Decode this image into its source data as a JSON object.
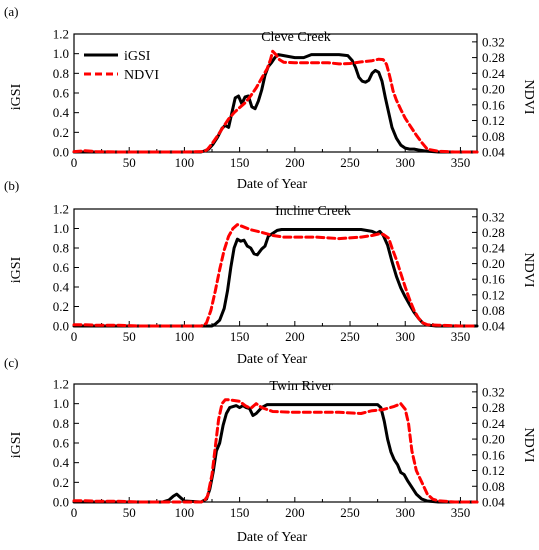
{
  "chart_data": [
    {
      "type": "line",
      "label": "(a)",
      "title": "Cleve Creek",
      "xlabel": "Date of Year",
      "ylabel": "iGSI",
      "y2label": "NDVI",
      "xlim": [
        0,
        365
      ],
      "ylim": [
        0,
        1.2
      ],
      "y2lim": [
        0.04,
        0.34
      ],
      "xticks": [
        0,
        50,
        100,
        150,
        200,
        250,
        300,
        350
      ],
      "yticks": [
        "0.0",
        "0.2",
        "0.4",
        "0.6",
        "0.8",
        "1.0",
        "1.2"
      ],
      "y2ticks": [
        "0.04",
        "0.08",
        "0.12",
        "0.16",
        "0.20",
        "0.24",
        "0.28",
        "0.32"
      ],
      "legend": {
        "position": "top-left",
        "entries": [
          "iGSI",
          "NDVI"
        ]
      },
      "series": [
        {
          "name": "iGSI",
          "axis": "left",
          "color": "#000000",
          "style": "solid",
          "x": [
            0,
            115,
            118,
            122,
            126,
            130,
            134,
            137,
            140,
            143,
            146,
            149,
            152,
            155,
            158,
            161,
            164,
            167,
            170,
            173,
            176,
            179,
            182,
            185,
            190,
            200,
            208,
            215,
            222,
            230,
            240,
            248,
            252,
            255,
            258,
            261,
            264,
            267,
            270,
            273,
            276,
            279,
            282,
            285,
            288,
            292,
            296,
            300,
            304,
            308,
            312,
            318,
            330,
            365
          ],
          "y": [
            0,
            0,
            0.01,
            0.03,
            0.08,
            0.15,
            0.24,
            0.27,
            0.25,
            0.4,
            0.55,
            0.57,
            0.49,
            0.56,
            0.57,
            0.46,
            0.44,
            0.52,
            0.63,
            0.78,
            0.87,
            0.91,
            0.96,
            0.99,
            0.98,
            0.96,
            0.96,
            0.99,
            0.99,
            0.99,
            0.99,
            0.98,
            0.93,
            0.86,
            0.76,
            0.72,
            0.71,
            0.73,
            0.8,
            0.83,
            0.81,
            0.72,
            0.55,
            0.4,
            0.25,
            0.14,
            0.07,
            0.04,
            0.03,
            0.03,
            0.02,
            0.01,
            0,
            0
          ]
        },
        {
          "name": "NDVI",
          "axis": "right",
          "color": "#ff0000",
          "style": "dashed",
          "x": [
            0,
            10,
            20,
            40,
            60,
            80,
            100,
            118,
            121,
            125,
            130,
            135,
            140,
            145,
            150,
            155,
            160,
            165,
            170,
            175,
            178,
            180,
            183,
            186,
            190,
            200,
            215,
            230,
            240,
            250,
            260,
            270,
            276,
            280,
            283,
            285,
            287,
            289,
            292,
            296,
            300,
            305,
            310,
            315,
            320,
            330,
            345,
            365
          ],
          "y": [
            0.041,
            0.043,
            0.041,
            0.04,
            0.04,
            0.04,
            0.04,
            0.041,
            0.047,
            0.061,
            0.081,
            0.103,
            0.124,
            0.14,
            0.153,
            0.165,
            0.183,
            0.203,
            0.228,
            0.252,
            0.275,
            0.296,
            0.287,
            0.275,
            0.268,
            0.267,
            0.267,
            0.267,
            0.264,
            0.265,
            0.269,
            0.272,
            0.276,
            0.275,
            0.263,
            0.243,
            0.22,
            0.195,
            0.172,
            0.148,
            0.126,
            0.104,
            0.083,
            0.064,
            0.047,
            0.042,
            0.04,
            0.04
          ]
        }
      ]
    },
    {
      "type": "line",
      "label": "(b)",
      "title": "Incline Creek",
      "xlabel": "Date of Year",
      "ylabel": "iGSI",
      "y2label": "NDVI",
      "xlim": [
        0,
        365
      ],
      "ylim": [
        0,
        1.2
      ],
      "y2lim": [
        0.04,
        0.34
      ],
      "xticks": [
        0,
        50,
        100,
        150,
        200,
        250,
        300,
        350
      ],
      "yticks": [
        "0.0",
        "0.2",
        "0.4",
        "0.6",
        "0.8",
        "1.0",
        "1.2"
      ],
      "y2ticks": [
        "0.04",
        "0.08",
        "0.12",
        "0.16",
        "0.20",
        "0.24",
        "0.28",
        "0.32"
      ],
      "series": [
        {
          "name": "iGSI",
          "axis": "left",
          "color": "#000000",
          "style": "solid",
          "x": [
            0,
            125,
            128,
            132,
            136,
            139,
            142,
            145,
            148,
            151,
            154,
            157,
            160,
            163,
            166,
            170,
            173,
            176,
            180,
            184,
            188,
            200,
            220,
            240,
            260,
            270,
            274,
            277,
            280,
            284,
            288,
            292,
            296,
            300,
            304,
            308,
            312,
            316,
            320,
            328,
            365
          ],
          "y": [
            0,
            0,
            0.02,
            0.06,
            0.18,
            0.36,
            0.6,
            0.8,
            0.89,
            0.87,
            0.88,
            0.82,
            0.8,
            0.74,
            0.73,
            0.79,
            0.82,
            0.92,
            0.95,
            0.98,
            0.99,
            0.99,
            0.99,
            0.99,
            0.99,
            0.97,
            0.95,
            0.97,
            0.93,
            0.83,
            0.66,
            0.51,
            0.39,
            0.3,
            0.22,
            0.14,
            0.08,
            0.03,
            0.01,
            0,
            0
          ]
        },
        {
          "name": "NDVI",
          "axis": "right",
          "color": "#ff0000",
          "style": "dashed",
          "x": [
            0,
            10,
            20,
            40,
            60,
            80,
            100,
            115,
            118,
            120,
            124,
            128,
            132,
            136,
            140,
            144,
            148,
            152,
            160,
            170,
            180,
            190,
            200,
            220,
            240,
            260,
            270,
            276,
            280,
            285,
            288,
            292,
            296,
            300,
            304,
            308,
            312,
            316,
            320,
            330,
            350,
            365
          ],
          "y": [
            0.043,
            0.043,
            0.042,
            0.042,
            0.04,
            0.04,
            0.04,
            0.04,
            0.043,
            0.048,
            0.08,
            0.13,
            0.185,
            0.235,
            0.27,
            0.29,
            0.3,
            0.296,
            0.287,
            0.28,
            0.272,
            0.268,
            0.268,
            0.268,
            0.264,
            0.268,
            0.272,
            0.276,
            0.275,
            0.265,
            0.24,
            0.21,
            0.175,
            0.14,
            0.108,
            0.08,
            0.06,
            0.048,
            0.043,
            0.042,
            0.04,
            0.04
          ]
        }
      ]
    },
    {
      "type": "line",
      "label": "(c)",
      "title": "Twin River",
      "xlabel": "Date of Year",
      "ylabel": "iGSI",
      "y2label": "NDVI",
      "xlim": [
        0,
        365
      ],
      "ylim": [
        0,
        1.2
      ],
      "y2lim": [
        0.04,
        0.34
      ],
      "xticks": [
        0,
        50,
        100,
        150,
        200,
        250,
        300,
        350
      ],
      "yticks": [
        "0.0",
        "0.2",
        "0.4",
        "0.6",
        "0.8",
        "1.0",
        "1.2"
      ],
      "y2ticks": [
        "0.04",
        "0.08",
        "0.12",
        "0.16",
        "0.20",
        "0.24",
        "0.28",
        "0.32"
      ],
      "series": [
        {
          "name": "iGSI",
          "axis": "left",
          "color": "#000000",
          "style": "solid",
          "x": [
            0,
            80,
            86,
            90,
            93,
            96,
            100,
            115,
            120,
            123,
            126,
            129,
            132,
            135,
            138,
            141,
            144,
            147,
            150,
            153,
            156,
            159,
            162,
            165,
            170,
            175,
            180,
            200,
            220,
            250,
            275,
            278,
            281,
            284,
            287,
            290,
            293,
            296,
            299,
            302,
            306,
            310,
            315,
            320,
            330,
            365
          ],
          "y": [
            0,
            0,
            0.02,
            0.06,
            0.08,
            0.05,
            0.01,
            0,
            0.03,
            0.13,
            0.3,
            0.52,
            0.6,
            0.78,
            0.9,
            0.96,
            0.97,
            0.98,
            0.96,
            0.98,
            0.96,
            0.95,
            0.88,
            0.9,
            0.96,
            0.99,
            0.99,
            0.99,
            0.99,
            0.99,
            0.99,
            0.96,
            0.82,
            0.64,
            0.51,
            0.43,
            0.38,
            0.3,
            0.28,
            0.22,
            0.15,
            0.08,
            0.03,
            0.01,
            0,
            0
          ]
        },
        {
          "name": "NDVI",
          "axis": "right",
          "color": "#ff0000",
          "style": "dashed",
          "x": [
            0,
            10,
            20,
            40,
            60,
            80,
            100,
            115,
            118,
            121,
            125,
            128,
            131,
            134,
            137,
            140,
            145,
            150,
            155,
            160,
            165,
            170,
            180,
            200,
            220,
            240,
            260,
            270,
            280,
            290,
            296,
            300,
            303,
            306,
            310,
            315,
            320,
            325,
            330,
            345,
            365
          ],
          "y": [
            0.043,
            0.043,
            0.042,
            0.042,
            0.04,
            0.04,
            0.04,
            0.04,
            0.043,
            0.055,
            0.11,
            0.18,
            0.25,
            0.29,
            0.3,
            0.3,
            0.298,
            0.296,
            0.285,
            0.278,
            0.29,
            0.28,
            0.27,
            0.268,
            0.268,
            0.268,
            0.265,
            0.272,
            0.275,
            0.283,
            0.29,
            0.276,
            0.24,
            0.17,
            0.12,
            0.09,
            0.06,
            0.047,
            0.043,
            0.04,
            0.04
          ]
        }
      ]
    }
  ]
}
